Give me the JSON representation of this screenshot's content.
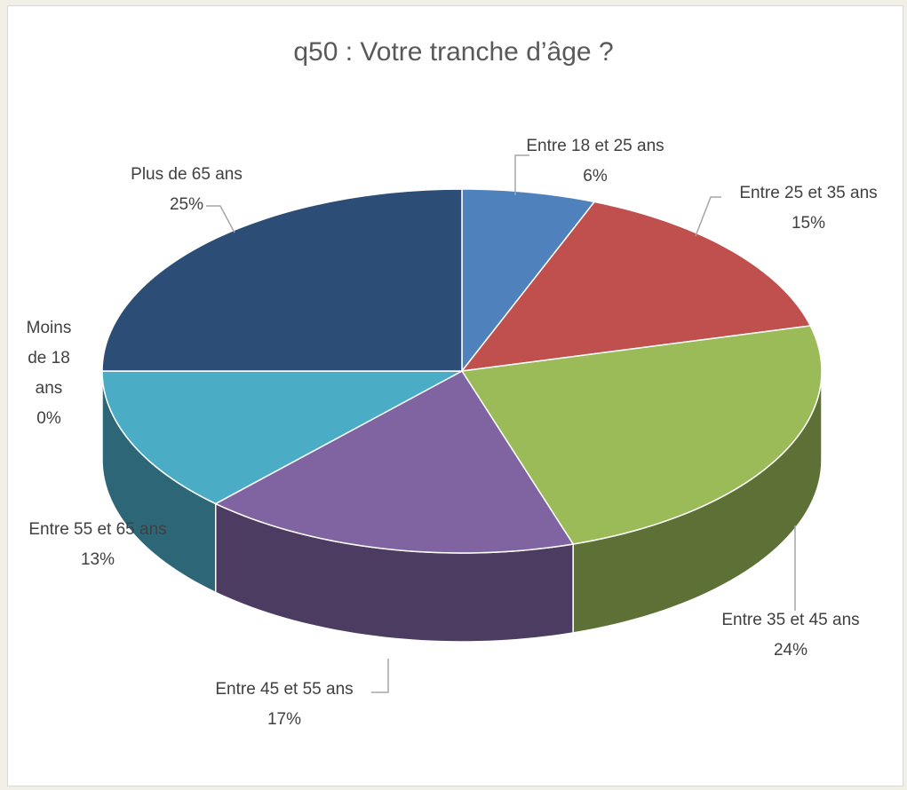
{
  "chart_data": {
    "type": "pie3d",
    "title": "q50 : Votre tranche d’âge ?",
    "categories": [
      "Entre 18 et 25 ans",
      "Entre 25 et 35 ans",
      "Entre 35 et 45 ans",
      "Entre 45 et 55 ans",
      "Entre 55 et 65 ans",
      "Moins de 18 ans",
      "Plus de 65 ans"
    ],
    "values": [
      6,
      15,
      24,
      17,
      13,
      0,
      25
    ],
    "value_labels": [
      "6%",
      "15%",
      "24%",
      "17%",
      "13%",
      "0%",
      "25%"
    ],
    "colors": [
      "#4f81bd",
      "#c0504d",
      "#9bbb59",
      "#8064a2",
      "#4bacc6",
      "#f79646",
      "#2c4d75"
    ]
  }
}
